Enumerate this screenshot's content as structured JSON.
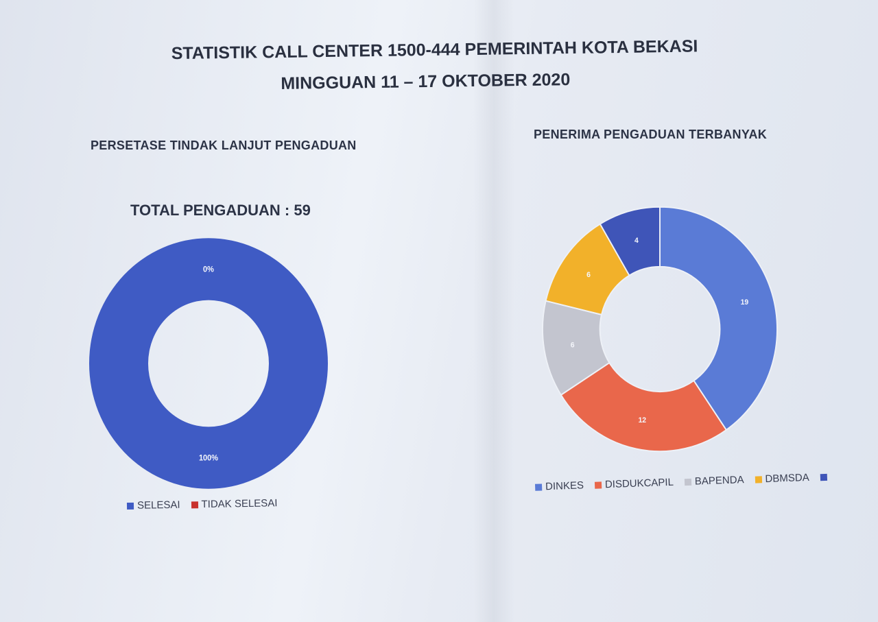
{
  "header": {
    "title_line1": "STATISTIK CALL CENTER 1500-444 PEMERINTAH KOTA BEKASI",
    "title_line2": "MINGGUAN 11 – 17 OKTOBER 2020"
  },
  "chart_data": [
    {
      "type": "pie",
      "donut": true,
      "title": "PERSETASE TINDAK LANJUT PENGADUAN",
      "subtitle": "TOTAL PENGADUAN : 59",
      "categories": [
        "SELESAI",
        "TIDAK SELESAI"
      ],
      "values": [
        100,
        0
      ],
      "data_labels": [
        "100%",
        "0%"
      ],
      "colors": [
        "#3f5bc4",
        "#c8322e"
      ],
      "legend": "bottom"
    },
    {
      "type": "pie",
      "donut": true,
      "title": "PENERIMA PENGADUAN TERBANYAK",
      "categories": [
        "DINKES",
        "DISDUKCAPIL",
        "BAPENDA",
        "DBMSDA",
        ""
      ],
      "values": [
        19,
        12,
        6,
        6,
        4
      ],
      "data_labels": [
        "19",
        "12",
        "6",
        "6",
        "4"
      ],
      "colors": [
        "#5a7bd6",
        "#e9674b",
        "#c3c5cf",
        "#f2b12a",
        "#3f55b8"
      ],
      "legend": "bottom"
    }
  ]
}
